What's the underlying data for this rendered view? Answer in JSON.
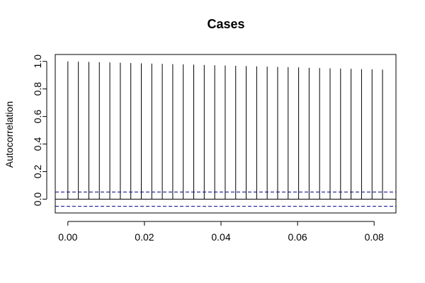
{
  "chart_data": {
    "type": "bar",
    "chart_kind": "acf",
    "title": "Cases",
    "xlabel": "",
    "ylabel": "Autocorrelation",
    "xlim": [
      -0.0033,
      0.0857
    ],
    "ylim": [
      -0.1,
      1.05
    ],
    "x_ticks": [
      0.0,
      0.02,
      0.04,
      0.06,
      0.08
    ],
    "x_tick_labels": [
      "0.00",
      "0.02",
      "0.04",
      "0.06",
      "0.08"
    ],
    "y_ticks": [
      0.0,
      0.2,
      0.4,
      0.6,
      0.8,
      1.0
    ],
    "y_tick_labels": [
      "0.0",
      "0.2",
      "0.4",
      "0.6",
      "0.8",
      "1.0"
    ],
    "zero_line": 0,
    "confidence_bounds": [
      0.052,
      -0.052
    ],
    "x": [
      0,
      0.00274,
      0.005479,
      0.008219,
      0.010959,
      0.013699,
      0.016438,
      0.019178,
      0.021918,
      0.024658,
      0.027397,
      0.030137,
      0.032877,
      0.035616,
      0.038356,
      0.041096,
      0.043836,
      0.046575,
      0.049315,
      0.052055,
      0.054795,
      0.057534,
      0.060274,
      0.063014,
      0.065753,
      0.068493,
      0.071233,
      0.073973,
      0.076712,
      0.079452,
      0.082192
    ],
    "values": [
      1.0,
      0.998,
      0.996,
      0.994,
      0.992,
      0.99,
      0.988,
      0.986,
      0.984,
      0.982,
      0.98,
      0.978,
      0.976,
      0.974,
      0.972,
      0.97,
      0.968,
      0.966,
      0.964,
      0.962,
      0.96,
      0.958,
      0.956,
      0.954,
      0.952,
      0.95,
      0.948,
      0.946,
      0.944,
      0.942,
      0.94
    ],
    "grid": false,
    "colors": {
      "bars": "#000000",
      "bounds": "#00008B",
      "axis": "#000000"
    }
  }
}
